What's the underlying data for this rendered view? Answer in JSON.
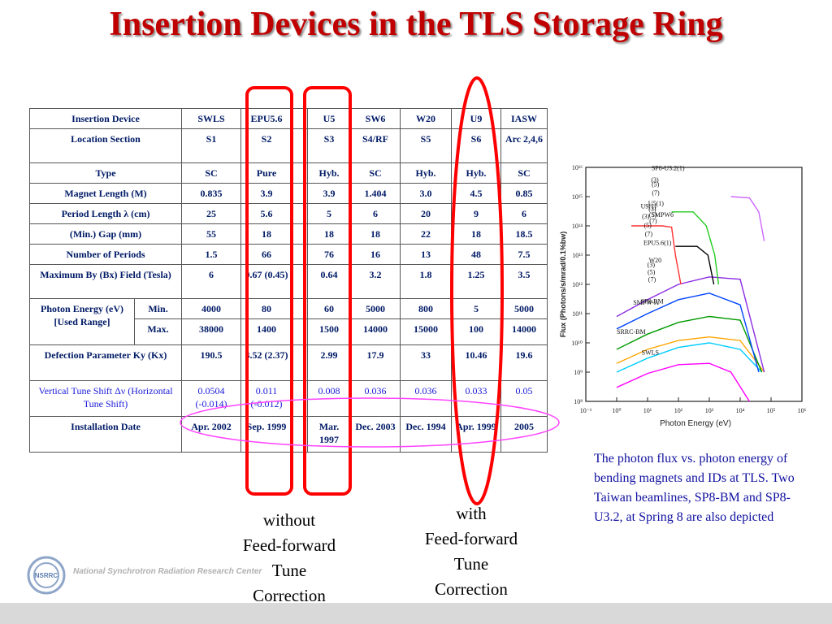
{
  "title": "Insertion Devices in the TLS Storage Ring",
  "table": {
    "header": [
      "Insertion Device",
      "SWLS",
      "EPU5.6",
      "U5",
      "SW6",
      "W20",
      "U9",
      "IASW"
    ],
    "rows": [
      {
        "label": "Location Section",
        "values": [
          "S1",
          "S2",
          "S3",
          "S4/RF",
          "S5",
          "S6",
          "Arc 2,4,6"
        ]
      },
      {
        "label": "Type",
        "values": [
          "SC",
          "Pure",
          "Hyb.",
          "SC",
          "Hyb.",
          "Hyb.",
          "SC"
        ]
      },
      {
        "label": "Magnet Length (M)",
        "values": [
          "0.835",
          "3.9",
          "3.9",
          "1.404",
          "3.0",
          "4.5",
          "0.85"
        ]
      },
      {
        "label": "Period Length λ (cm)",
        "values": [
          "25",
          "5.6",
          "5",
          "6",
          "20",
          "9",
          "6"
        ]
      },
      {
        "label": "(Min.) Gap (mm)",
        "values": [
          "55",
          "18",
          "18",
          "18",
          "22",
          "18",
          "18.5"
        ]
      },
      {
        "label": "Number of Periods",
        "values": [
          "1.5",
          "66",
          "76",
          "16",
          "13",
          "48",
          "7.5"
        ]
      },
      {
        "label": "Maximum By (Bx) Field (Tesla)",
        "values": [
          "6",
          "0.67 (0.45)",
          "0.64",
          "3.2",
          "1.8",
          "1.25",
          "3.5"
        ]
      }
    ],
    "photon_energy": {
      "label": "Photon Energy (eV) [Used Range]",
      "min_label": "Min.",
      "max_label": "Max.",
      "min": [
        "4000",
        "80",
        "60",
        "5000",
        "800",
        "5",
        "5000"
      ],
      "max": [
        "38000",
        "1400",
        "1500",
        "14000",
        "15000",
        "100",
        "14000"
      ]
    },
    "deflection": {
      "label": "Defection Parameter Ky (Kx)",
      "values": [
        "190.5",
        "3.52 (2.37)",
        "2.99",
        "17.9",
        "33",
        "10.46",
        "19.6"
      ]
    },
    "tune": {
      "label": "Vertical Tune Shift Δν (Horizontal Tune Shift)",
      "values": [
        "0.0504 (-0.014)",
        "0.011 (-0.012)",
        "0.008",
        "0.036",
        "0.036",
        "0.033",
        "0.05"
      ]
    },
    "install": {
      "label": "Installation Date",
      "values": [
        "Apr. 2002",
        "Sep. 1999",
        "Mar. 1997",
        "Dec. 2003",
        "Dec. 1994",
        "Apr. 1999",
        "2005"
      ]
    }
  },
  "captions": {
    "without": [
      "without",
      "Feed-forward",
      "Tune",
      "Correction"
    ],
    "with": [
      "with",
      "Feed-forward",
      "Tune",
      "Correction"
    ]
  },
  "note": "The photon flux vs. photon energy of bending magnets and IDs at TLS. Two Taiwan beamlines, SP8-BM and SP8-U3.2, at Spring 8 are also depicted",
  "footer": {
    "logo_text": "NSRRC",
    "center_name": "National Synchrotron Radiation Research Center"
  },
  "colors": {
    "title": "#c00000",
    "highlight": "#ff0000",
    "tune_ellipse": "#ff44ff",
    "table_text": "#001a66",
    "tune_text": "#1a1ad9",
    "note_text": "#1010a0"
  },
  "chart_data": {
    "type": "line",
    "xlabel": "Photon Energy (eV)",
    "ylabel": "Flux (Photons/s/mrad/0.1%bw)",
    "xscale": "log",
    "yscale": "log",
    "xlim": [
      0.1,
      1000000
    ],
    "ylim": [
      100000000,
      10000000000000000
    ],
    "x_tick_labels": [
      "10⁻¹",
      "10⁰",
      "10¹",
      "10²",
      "10³",
      "10⁴",
      "10⁵",
      "10⁶"
    ],
    "y_tick_labels": [
      "10⁸",
      "10⁹",
      "10¹⁰",
      "10¹¹",
      "10¹²",
      "10¹³",
      "10¹⁴",
      "10¹⁵",
      "10¹⁶"
    ],
    "annotations": [
      "U5(1)",
      "(3)",
      "(5)",
      "(7)",
      "U9(1)",
      "(3)",
      "(5)",
      "(7)",
      "SP8-U3.2(1)",
      "(3)",
      "(5)",
      "(7)",
      "SMPW6",
      "EPU5.6(1)",
      "(3)",
      "(5)",
      "(7)",
      "W20",
      "SMPW-A",
      "SP8-BM",
      "SRRC-BM",
      "SWLS"
    ],
    "series": [
      {
        "name": "SRRC-BM",
        "color": "#ff00ff",
        "points": [
          [
            1,
            300000000
          ],
          [
            10,
            900000000
          ],
          [
            100,
            1800000000
          ],
          [
            1000,
            2000000000
          ],
          [
            5000,
            1000000000
          ],
          [
            20000,
            100000000
          ]
        ]
      },
      {
        "name": "SWLS",
        "color": "#00ccff",
        "points": [
          [
            1,
            1000000000
          ],
          [
            10,
            3000000000
          ],
          [
            100,
            7000000000
          ],
          [
            1000,
            10000000000
          ],
          [
            10000,
            6000000000
          ],
          [
            50000,
            1000000000
          ]
        ]
      },
      {
        "name": "SP8-BM",
        "color": "#ffa500",
        "points": [
          [
            1,
            2000000000
          ],
          [
            10,
            6000000000
          ],
          [
            100,
            12000000000
          ],
          [
            1000,
            16000000000
          ],
          [
            10000,
            12000000000
          ],
          [
            60000,
            1000000000
          ]
        ]
      },
      {
        "name": "SMPW-A",
        "color": "#009900",
        "points": [
          [
            1,
            6000000000
          ],
          [
            10,
            20000000000
          ],
          [
            100,
            50000000000
          ],
          [
            1000,
            80000000000
          ],
          [
            10000,
            60000000000
          ],
          [
            50000,
            1000000000
          ]
        ]
      },
      {
        "name": "W20",
        "color": "#0044ff",
        "points": [
          [
            1,
            30000000000
          ],
          [
            10,
            100000000000
          ],
          [
            100,
            300000000000
          ],
          [
            1000,
            500000000000
          ],
          [
            10000,
            200000000000
          ],
          [
            40000,
            1000000000
          ]
        ]
      },
      {
        "name": "SMPW6",
        "color": "#8a2be2",
        "points": [
          [
            1,
            80000000000
          ],
          [
            10,
            300000000000
          ],
          [
            100,
            1000000000000
          ],
          [
            1000,
            1800000000000
          ],
          [
            10000,
            1500000000000
          ],
          [
            60000,
            1000000000
          ]
        ]
      },
      {
        "name": "U9",
        "color": "#ff3030",
        "points": [
          [
            3,
            100000000000000
          ],
          [
            30,
            100000000000000
          ],
          [
            60,
            90000000000000
          ],
          [
            80,
            10000000000000
          ],
          [
            120,
            1000000000000
          ]
        ]
      },
      {
        "name": "U5",
        "color": "#22cc22",
        "points": [
          [
            60,
            300000000000000
          ],
          [
            300,
            300000000000000
          ],
          [
            800,
            100000000000000
          ],
          [
            1500,
            10000000000000
          ],
          [
            2000,
            1000000000000
          ]
        ]
      },
      {
        "name": "EPU5.6",
        "color": "#000000",
        "points": [
          [
            80,
            20000000000000
          ],
          [
            400,
            20000000000000
          ],
          [
            900,
            10000000000000
          ],
          [
            1400,
            1000000000000
          ]
        ]
      },
      {
        "name": "SP8-U3.2",
        "color": "#cc66ff",
        "points": [
          [
            5000,
            1000000000000000
          ],
          [
            20000,
            900000000000000
          ],
          [
            40000,
            300000000000000
          ],
          [
            60000,
            30000000000000
          ]
        ]
      }
    ]
  }
}
